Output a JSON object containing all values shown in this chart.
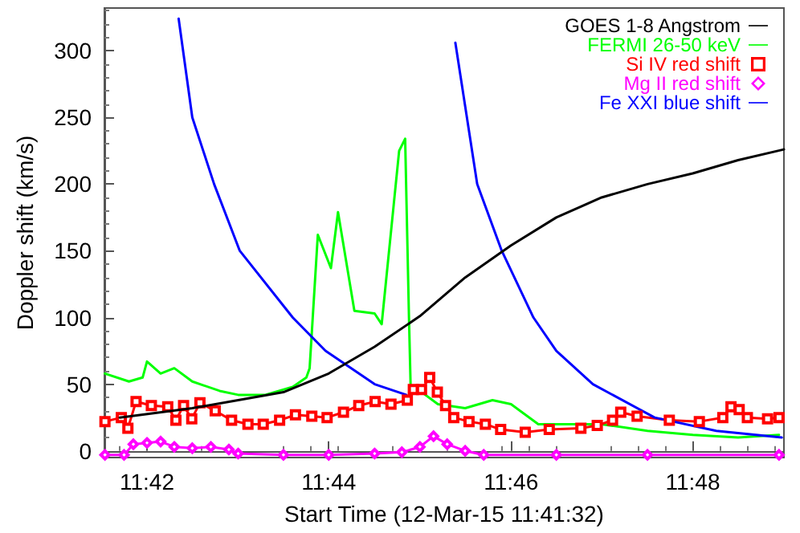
{
  "chart_data": {
    "type": "line",
    "xlabel": "Start Time (12-Mar-15 11:41:32)",
    "ylabel": "Doppler shift (km/s)",
    "xlim": [
      11.6922,
      11.8167
    ],
    "ylim": [
      -5,
      332
    ],
    "xticks": [
      {
        "value": 11.7,
        "label": "11:42"
      },
      {
        "value": 11.7333,
        "label": "11:44"
      },
      {
        "value": 11.7667,
        "label": "11:46"
      },
      {
        "value": 11.8,
        "label": "11:48"
      }
    ],
    "yticks": [
      0,
      50,
      100,
      150,
      200,
      250,
      300
    ],
    "legend": "top right",
    "marker": "none",
    "line_style": "solid",
    "series": [
      {
        "name": "GOES 1-8 Angstrom",
        "color": "#000000",
        "x": [
          11.695,
          11.7083,
          11.7167,
          11.725,
          11.7333,
          11.7417,
          11.75,
          11.7583,
          11.7667,
          11.775,
          11.7833,
          11.7917,
          11.8,
          11.8083,
          11.8167
        ],
        "values": [
          25,
          32,
          38,
          44,
          58,
          78,
          101,
          130,
          154,
          175,
          190,
          200,
          208,
          218,
          226
        ]
      },
      {
        "name": "FERMI 26-50 keV",
        "color": "#00ff00",
        "x": [
          11.6923,
          11.6967,
          11.6992,
          11.7,
          11.7025,
          11.705,
          11.7083,
          11.7133,
          11.7167,
          11.7217,
          11.7267,
          11.7292,
          11.7298,
          11.7313,
          11.7337,
          11.735,
          11.738,
          11.7417,
          11.743,
          11.7462,
          11.7473,
          11.748,
          11.7483,
          11.75,
          11.7533,
          11.7583,
          11.7633,
          11.7667,
          11.7717,
          11.7833,
          11.7917,
          11.8,
          11.8083,
          11.8158
        ],
        "values": [
          58,
          52,
          55,
          67,
          58,
          62,
          52,
          45,
          42,
          42,
          48,
          55,
          62,
          162,
          137,
          179,
          105,
          103,
          95,
          225,
          234,
          100,
          49,
          45,
          35,
          32,
          38,
          35,
          20,
          20,
          15,
          12,
          10,
          12
        ]
      },
      {
        "name": "Si IV red shift",
        "color": "#ff0000",
        "marker": "square",
        "x": [
          11.6923,
          11.6953,
          11.6965,
          11.698,
          11.7008,
          11.7038,
          11.7053,
          11.7067,
          11.7082,
          11.7097,
          11.7125,
          11.7155,
          11.7185,
          11.7213,
          11.7243,
          11.7272,
          11.7302,
          11.733,
          11.736,
          11.7388,
          11.7418,
          11.7447,
          11.7477,
          11.7488,
          11.7503,
          11.7518,
          11.7532,
          11.7547,
          11.7562,
          11.759,
          11.762,
          11.7648,
          11.7693,
          11.7737,
          11.7795,
          11.7825,
          11.7853,
          11.7868,
          11.7898,
          11.7957,
          11.8012,
          11.8055,
          11.807,
          11.8085,
          11.81,
          11.8137,
          11.8158
        ],
        "values": [
          22,
          25,
          17,
          37,
          34,
          33,
          23,
          34,
          24,
          36,
          30,
          23,
          20,
          20,
          23,
          27,
          26,
          25,
          29,
          34,
          37,
          35,
          38,
          46,
          46,
          55,
          44,
          34,
          25,
          22,
          20,
          16,
          14,
          16,
          17,
          19,
          23,
          29,
          26,
          23,
          22,
          25,
          33,
          31,
          25,
          24,
          25
        ]
      },
      {
        "name": "Mg II red shift",
        "color": "#ff00ff",
        "marker": "diamond",
        "x": [
          11.6923,
          11.6958,
          11.6975,
          11.7,
          11.7025,
          11.705,
          11.7083,
          11.7117,
          11.715,
          11.7167,
          11.725,
          11.7333,
          11.7417,
          11.7467,
          11.75,
          11.7525,
          11.755,
          11.7583,
          11.7617,
          11.775,
          11.7917,
          11.8158
        ],
        "values": [
          -3,
          -3,
          5,
          6,
          7,
          3,
          2,
          3,
          1,
          -2,
          -3,
          -3,
          -2,
          -1,
          3,
          11,
          5,
          0,
          -3,
          -3,
          -3,
          -3
        ]
      },
      {
        "name": "Fe XXI blue shift",
        "color": "#0000ff",
        "x": [
          11.7058,
          11.7083,
          11.7123,
          11.717,
          11.7267,
          11.7327,
          11.7417,
          11.7475,
          11.7483,
          11.7565,
          11.7605,
          11.765,
          11.7708,
          11.775,
          11.7817,
          11.793,
          11.8043,
          11.8163
        ],
        "values": [
          324,
          250,
          200,
          150,
          100,
          75,
          50,
          42,
          null,
          306,
          200,
          150,
          100,
          75,
          50,
          25,
          15,
          10
        ]
      }
    ]
  }
}
